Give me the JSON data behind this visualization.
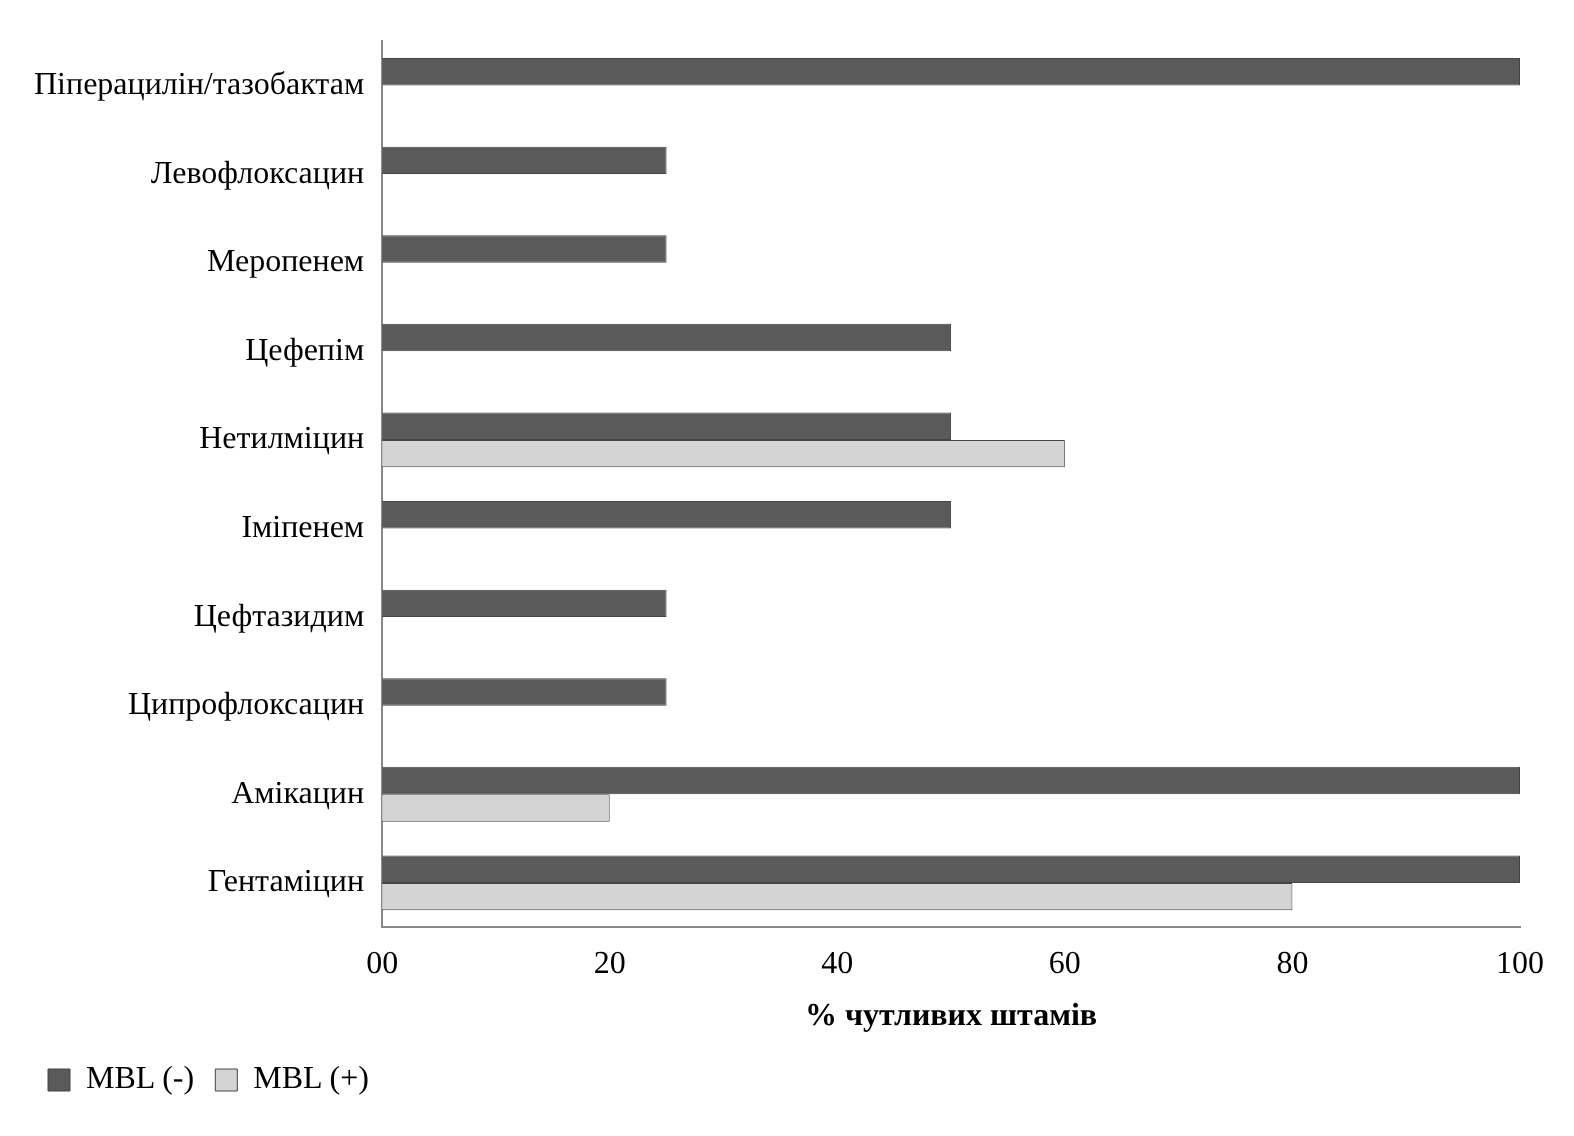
{
  "chart_data": {
    "type": "bar",
    "orientation": "horizontal",
    "xlabel": "% чутливих штамів",
    "categories": [
      "Піперацилін/тазобактам",
      "Левофлоксацин",
      "Меропенем",
      "Цефепім",
      "Нетилміцин",
      "Іміпенем",
      "Цефтазидим",
      "Ципрофлоксацин",
      "Амікацин",
      "Гентаміцин"
    ],
    "series": [
      {
        "name": "MBL (-)",
        "color": "#5a5a5a",
        "values": [
          100,
          25,
          25,
          50,
          50,
          50,
          25,
          25,
          100,
          100
        ]
      },
      {
        "name": "MBL (+)",
        "color": "#d4d4d4",
        "values": [
          null,
          null,
          null,
          null,
          60,
          null,
          null,
          null,
          20,
          80
        ]
      }
    ],
    "xlim": [
      0,
      100
    ],
    "xticks": [
      {
        "value": 0,
        "label": "00"
      },
      20,
      40,
      60,
      80,
      100
    ],
    "grid": false,
    "legend": "bottom left"
  }
}
